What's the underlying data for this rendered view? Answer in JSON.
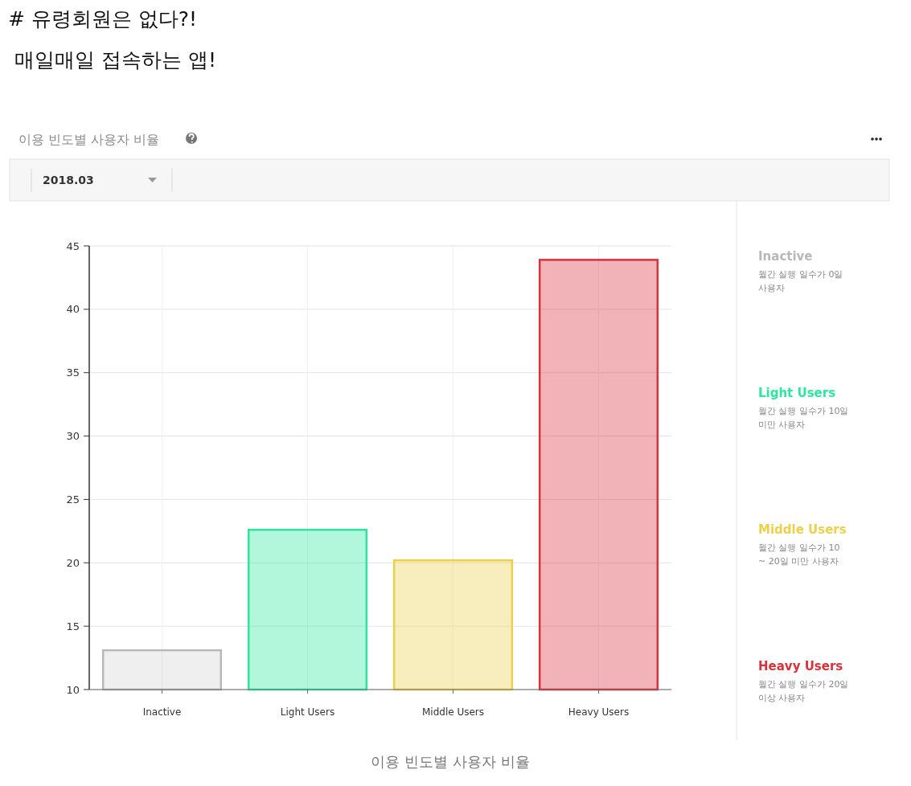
{
  "chart_data": {
    "type": "bar",
    "title": "# 유령회원은 없다?!",
    "subtitle": "매일매일 접속하는 앱!",
    "categories": [
      "Inactive",
      "Light Users",
      "Middle Users",
      "Heavy Users"
    ],
    "values": [
      13.1,
      22.6,
      20.2,
      43.9
    ],
    "colors": [
      "#b8b8b8",
      "#2ee6a0",
      "#ecd04c",
      "#d8323c"
    ],
    "ylim": [
      10,
      45
    ],
    "yticks": [
      10,
      15,
      20,
      25,
      30,
      35,
      40,
      45
    ],
    "grid": true,
    "annotations": [
      "이용 빈도별 사용자 비율",
      "2018.03",
      "월간 실행 일수가 0일 사용자",
      "월간 실행 일수가 10일 미만 사용자",
      "월간 실행 일수가 10 ~ 20일 미만 사용자",
      "월간 실행 일수가 20일 이상 사용자",
      "이용 빈도별 사용자 비율"
    ]
  }
}
